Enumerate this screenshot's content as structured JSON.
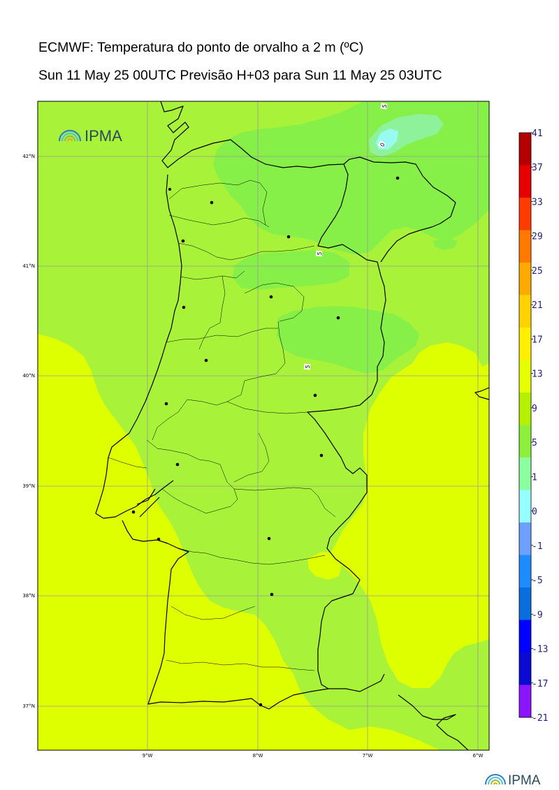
{
  "header": {
    "title": "ECMWF: Temperatura do ponto de orvalho a 2 m (ºC)",
    "subtitle": "Sun 11 May 25 00UTC Previsão H+03 para Sun 11 May 25 03UTC"
  },
  "logo": {
    "text": "IPMA"
  },
  "axes": {
    "lat_labels": [
      "42°N",
      "41°N",
      "40°N",
      "39°N",
      "38°N",
      "37°N"
    ],
    "lon_labels": [
      "9°W",
      "8°W",
      "7°W",
      "6°W"
    ]
  },
  "contour_labels": [
    "5",
    "5",
    "5",
    "0"
  ],
  "colorbar": {
    "labels": [
      "41",
      "37",
      "33",
      "29",
      "25",
      "21",
      "17",
      "13",
      "9",
      "5",
      "1",
      "0",
      "-1",
      "-5",
      "-9",
      "-13",
      "-17",
      "-21"
    ],
    "colors": [
      "#b40000",
      "#e60000",
      "#ff3c00",
      "#ff7800",
      "#ffaa00",
      "#ffd200",
      "#fff000",
      "#e6ff00",
      "#b4f000",
      "#8cf03c",
      "#8cffa0",
      "#96ffff",
      "#6ea0ff",
      "#1e8cff",
      "#0a6edc",
      "#0000ff",
      "#0a0ad2",
      "#8c14ff"
    ]
  },
  "field_colors": {
    "band_9_13": "#deff00",
    "band_5_9": "#a8f23a",
    "band_1_5": "#86ef48",
    "band_0_1": "#8ef29a",
    "band_m1_0": "#98fbf2"
  }
}
